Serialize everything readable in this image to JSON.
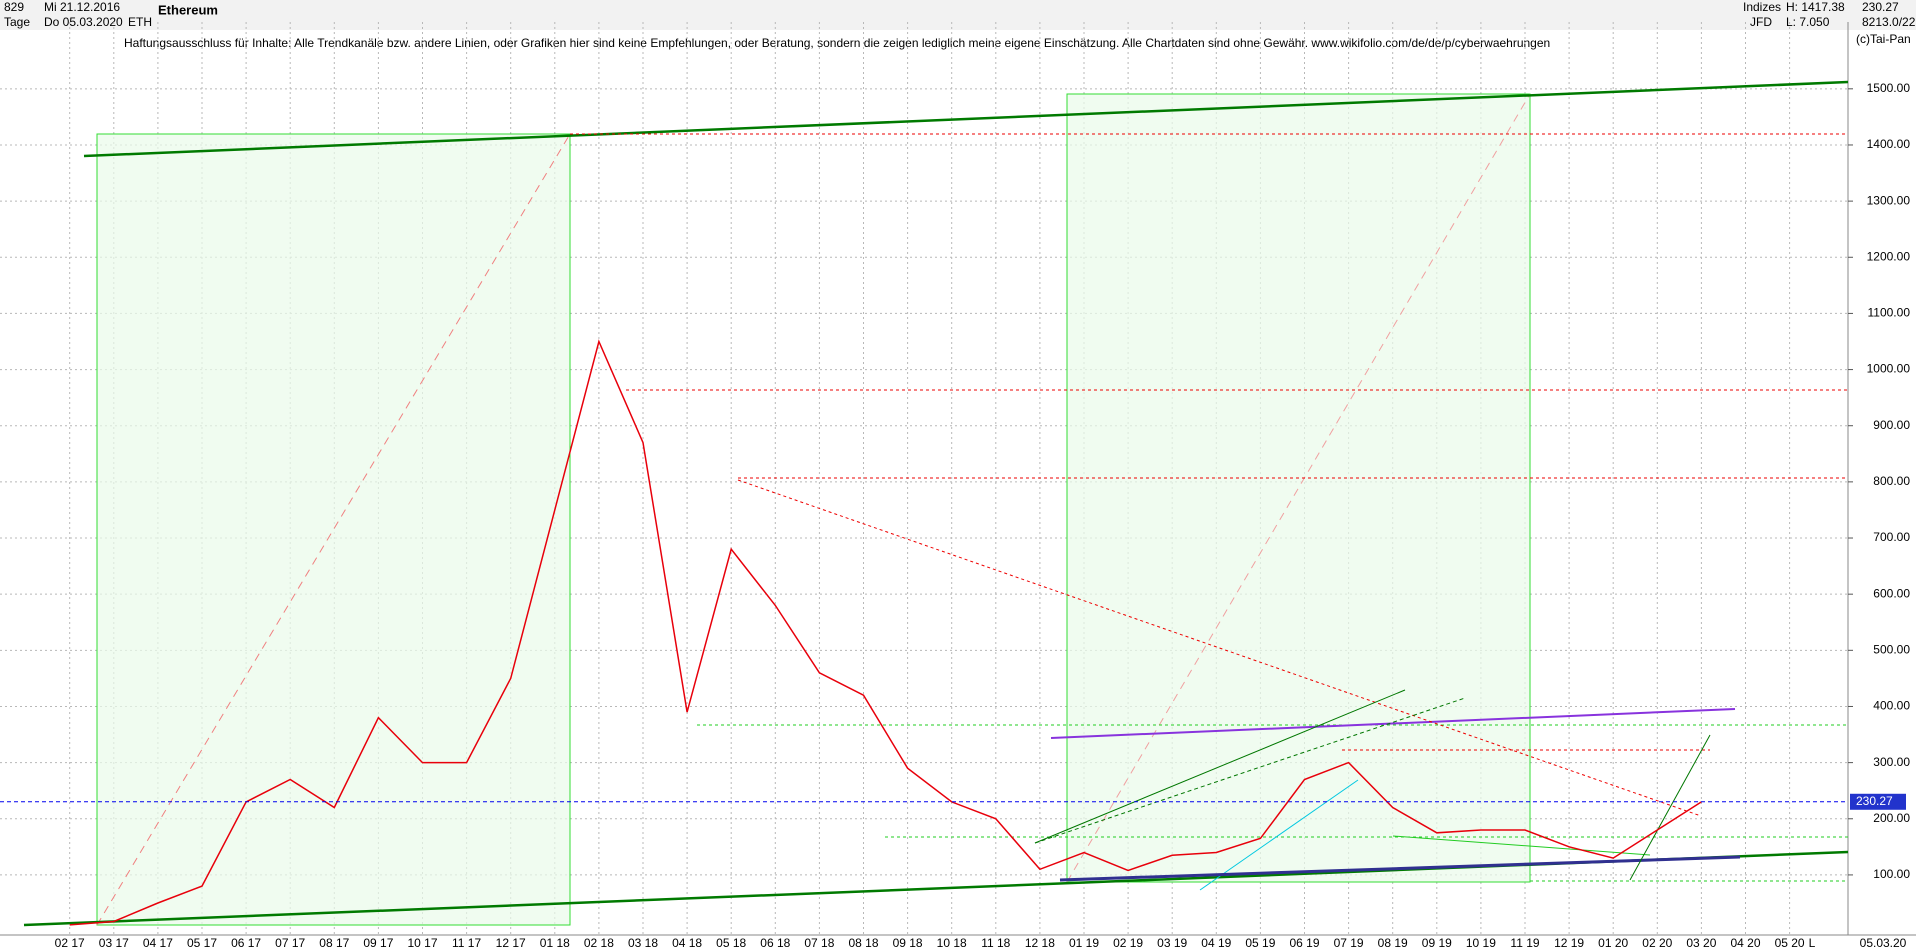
{
  "header": {
    "count": "829",
    "start_date": "Mi 21.12.2016",
    "period": "Tage",
    "end_date": "Do 05.03.2020",
    "name": "Ethereum",
    "symbol": "ETH",
    "group": "Indizes",
    "broker": "JFD",
    "high": "H: 1417.38",
    "low": "L: 7.050",
    "last": "230.27",
    "info": "8213.0/22",
    "copyright": "(c)Tai-Pan",
    "disclaimer": "Haftungsausschluss für Inhalte: Alle Trendkanäle bzw. andere Linien, oder Grafiken hier sind keine Empfehlungen, oder Beratung, sondern die zeigen lediglich meine eigene Einschätzung. Alle Chartdaten sind ohne Gewähr.  www.wikifolio.com/de/de/p/cyberwaehrungen"
  },
  "chart_data": {
    "type": "line",
    "categories": [
      "02 17",
      "03 17",
      "04 17",
      "05 17",
      "06 17",
      "07 17",
      "08 17",
      "09 17",
      "10 17",
      "11 17",
      "12 17",
      "01 18",
      "02 18",
      "03 18",
      "04 18",
      "05 18",
      "06 18",
      "07 18",
      "08 18",
      "09 18",
      "10 18",
      "11 18",
      "12 18",
      "01 19",
      "02 19",
      "03 19",
      "04 19",
      "05 19",
      "06 19",
      "07 19",
      "08 19",
      "09 19",
      "10 19",
      "11 19",
      "12 19",
      "01 20",
      "02 20",
      "03 20",
      "04 20",
      "05 20"
    ],
    "series": [
      {
        "name": "Ethereum",
        "color": "#e8000b",
        "values": [
          11,
          17,
          50,
          80,
          230,
          270,
          220,
          380,
          300,
          300,
          450,
          750,
          1050,
          870,
          390,
          680,
          580,
          460,
          420,
          290,
          230,
          200,
          110,
          140,
          108,
          135,
          140,
          165,
          270,
          300,
          220,
          175,
          180,
          180,
          150,
          130,
          180,
          230,
          null,
          null
        ]
      }
    ],
    "last_price": 230.27,
    "ylim": [
      -7,
      1619
    ],
    "yticks": [
      {
        "value": 100,
        "label": "100.00"
      },
      {
        "value": 200,
        "label": "200.00"
      },
      {
        "value": 300,
        "label": "300.00"
      },
      {
        "value": 400,
        "label": "400.00"
      },
      {
        "value": 500,
        "label": "500.00"
      },
      {
        "value": 600,
        "label": "600.00"
      },
      {
        "value": 700,
        "label": "700.00"
      },
      {
        "value": 800,
        "label": "800.00"
      },
      {
        "value": 900,
        "label": "900.00"
      },
      {
        "value": 1000,
        "label": "1000.00"
      },
      {
        "value": 1100,
        "label": "1100.00"
      },
      {
        "value": 1200,
        "label": "1200.00"
      },
      {
        "value": 1300,
        "label": "1300.00"
      },
      {
        "value": 1400,
        "label": "1400.00"
      },
      {
        "value": 1500,
        "label": "1500.00"
      }
    ],
    "grid": true,
    "date_label": "05.03.20",
    "axis_mode": "L"
  }
}
